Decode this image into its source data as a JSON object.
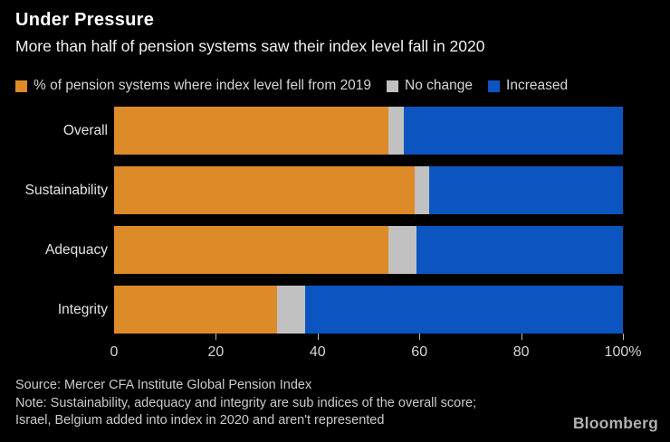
{
  "page": {
    "background": "#000000"
  },
  "header": {
    "title": "Under Pressure",
    "subtitle": "More than half of pension systems saw their index level fall in 2020"
  },
  "legend": {
    "items": [
      {
        "key": "fell",
        "label": "% of pension systems where index level fell from 2019",
        "color": "#DD8B28"
      },
      {
        "key": "no_change",
        "label": "No change",
        "color": "#C1C1C1"
      },
      {
        "key": "increased",
        "label": "Increased",
        "color": "#0C55C0"
      }
    ]
  },
  "chart_data": {
    "type": "bar",
    "orientation": "horizontal",
    "stacked": true,
    "title": "Under Pressure",
    "subtitle": "More than half of pension systems saw their index level fall in 2020",
    "categories": [
      "Overall",
      "Sustainability",
      "Adequacy",
      "Integrity"
    ],
    "series": [
      {
        "key": "fell",
        "name": "% of pension systems where index level fell from 2019",
        "color": "#DD8B28",
        "values": [
          54,
          59,
          54,
          32
        ]
      },
      {
        "key": "no_change",
        "name": "No change",
        "color": "#C1C1C1",
        "values": [
          3,
          3,
          5.5,
          5.5
        ]
      },
      {
        "key": "increased",
        "name": "Increased",
        "color": "#0C55C0",
        "values": [
          43,
          38,
          40.5,
          62.5
        ]
      }
    ],
    "x_axis": {
      "range": [
        0,
        100
      ],
      "ticks": [
        0,
        20,
        40,
        60,
        80,
        100
      ],
      "tick_labels": [
        "0",
        "20",
        "40",
        "60",
        "80",
        "100%"
      ],
      "grid": false
    },
    "legend_position": "top"
  },
  "footer": {
    "source": "Source: Mercer CFA Institute Global Pension Index",
    "note_line1": "Note: Sustainability, adequacy and integrity are sub indices of the overall score;",
    "note_line2": "Israel, Belgium added into index in 2020 and aren't represented",
    "brand": "Bloomberg"
  }
}
